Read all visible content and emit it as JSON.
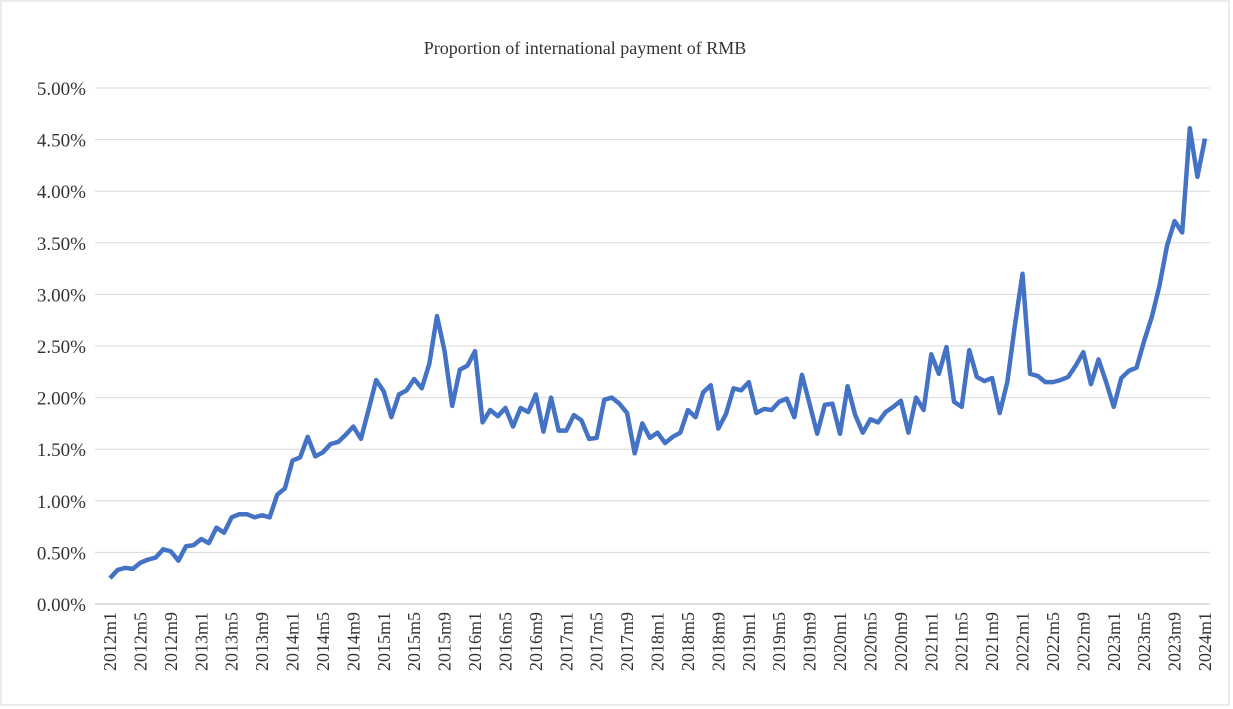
{
  "chart_data": {
    "type": "line",
    "title": "Proportion of international payment of RMB",
    "categories": [
      "2012m1",
      null,
      null,
      null,
      "2012m5",
      null,
      null,
      null,
      "2012m9",
      null,
      null,
      null,
      "2013m1",
      null,
      null,
      null,
      "2013m5",
      null,
      null,
      null,
      "2013m9",
      null,
      null,
      null,
      "2014m1",
      null,
      null,
      null,
      "2014m5",
      null,
      null,
      null,
      "2014m9",
      null,
      null,
      null,
      "2015m1",
      null,
      null,
      null,
      "2015m5",
      null,
      null,
      null,
      "2015m9",
      null,
      null,
      null,
      "2016m1",
      null,
      null,
      null,
      "2016m5",
      null,
      null,
      null,
      "2016m9",
      null,
      null,
      null,
      "2017m1",
      null,
      null,
      null,
      "2017m5",
      null,
      null,
      null,
      "2017m9",
      null,
      null,
      null,
      "2018m1",
      null,
      null,
      null,
      "2018m5",
      null,
      null,
      null,
      "2018m9",
      null,
      null,
      null,
      "2019m1",
      null,
      null,
      null,
      "2019m5",
      null,
      null,
      null,
      "2019m9",
      null,
      null,
      null,
      "2020m1",
      null,
      null,
      null,
      "2020m5",
      null,
      null,
      null,
      "2020m9",
      null,
      null,
      null,
      "2021m1",
      null,
      null,
      null,
      "2021m5",
      null,
      null,
      null,
      "2021m9",
      null,
      null,
      null,
      "2022m1",
      null,
      null,
      null,
      "2022m5",
      null,
      null,
      null,
      "2022m9",
      null,
      null,
      null,
      "2023m1",
      null,
      null,
      null,
      "2023m5",
      null,
      null,
      null,
      "2023m9",
      null,
      null,
      null,
      "2024m1"
    ],
    "series": [
      {
        "color": "#4472c4",
        "values": [
          0.25,
          0.33,
          0.35,
          0.34,
          0.4,
          0.43,
          0.45,
          0.53,
          0.51,
          0.42,
          0.56,
          0.57,
          0.63,
          0.59,
          0.74,
          0.69,
          0.84,
          0.87,
          0.87,
          0.84,
          0.86,
          0.84,
          1.06,
          1.12,
          1.39,
          1.42,
          1.62,
          1.43,
          1.47,
          1.55,
          1.57,
          1.64,
          1.72,
          1.6,
          1.88,
          2.17,
          2.06,
          1.81,
          2.03,
          2.07,
          2.18,
          2.09,
          2.33,
          2.79,
          2.45,
          1.92,
          2.27,
          2.31,
          2.45,
          1.76,
          1.88,
          1.82,
          1.9,
          1.72,
          1.9,
          1.86,
          2.03,
          1.67,
          2.0,
          1.68,
          1.68,
          1.83,
          1.78,
          1.6,
          1.61,
          1.98,
          2.0,
          1.94,
          1.85,
          1.46,
          1.75,
          1.61,
          1.66,
          1.56,
          1.62,
          1.66,
          1.88,
          1.81,
          2.05,
          2.12,
          1.7,
          1.84,
          2.09,
          2.07,
          2.15,
          1.85,
          1.89,
          1.88,
          1.96,
          1.99,
          1.81,
          2.22,
          1.94,
          1.65,
          1.93,
          1.94,
          1.65,
          2.11,
          1.83,
          1.66,
          1.79,
          1.76,
          1.86,
          1.91,
          1.97,
          1.66,
          2.0,
          1.88,
          2.42,
          2.23,
          2.49,
          1.96,
          1.91,
          2.46,
          2.2,
          2.16,
          2.19,
          1.85,
          2.15,
          2.7,
          3.2,
          2.23,
          2.21,
          2.15,
          2.15,
          2.17,
          2.2,
          2.31,
          2.44,
          2.13,
          2.37,
          2.15,
          1.91,
          2.19,
          2.26,
          2.29,
          2.55,
          2.78,
          3.08,
          3.47,
          3.71,
          3.6,
          4.61,
          4.14,
          4.51
        ]
      }
    ],
    "ylim": [
      0,
      5
    ],
    "yticks": [
      {
        "value": 0,
        "label": "0.00%"
      },
      {
        "value": 0.5,
        "label": "0.50%"
      },
      {
        "value": 1,
        "label": "1.00%"
      },
      {
        "value": 1.5,
        "label": "1.50%"
      },
      {
        "value": 2,
        "label": "2.00%"
      },
      {
        "value": 2.5,
        "label": "2.50%"
      },
      {
        "value": 3,
        "label": "3.00%"
      },
      {
        "value": 3.5,
        "label": "3.50%"
      },
      {
        "value": 4,
        "label": "4.00%"
      },
      {
        "value": 4.5,
        "label": "4.50%"
      },
      {
        "value": 5,
        "label": "5.00%"
      }
    ],
    "grid": true
  }
}
